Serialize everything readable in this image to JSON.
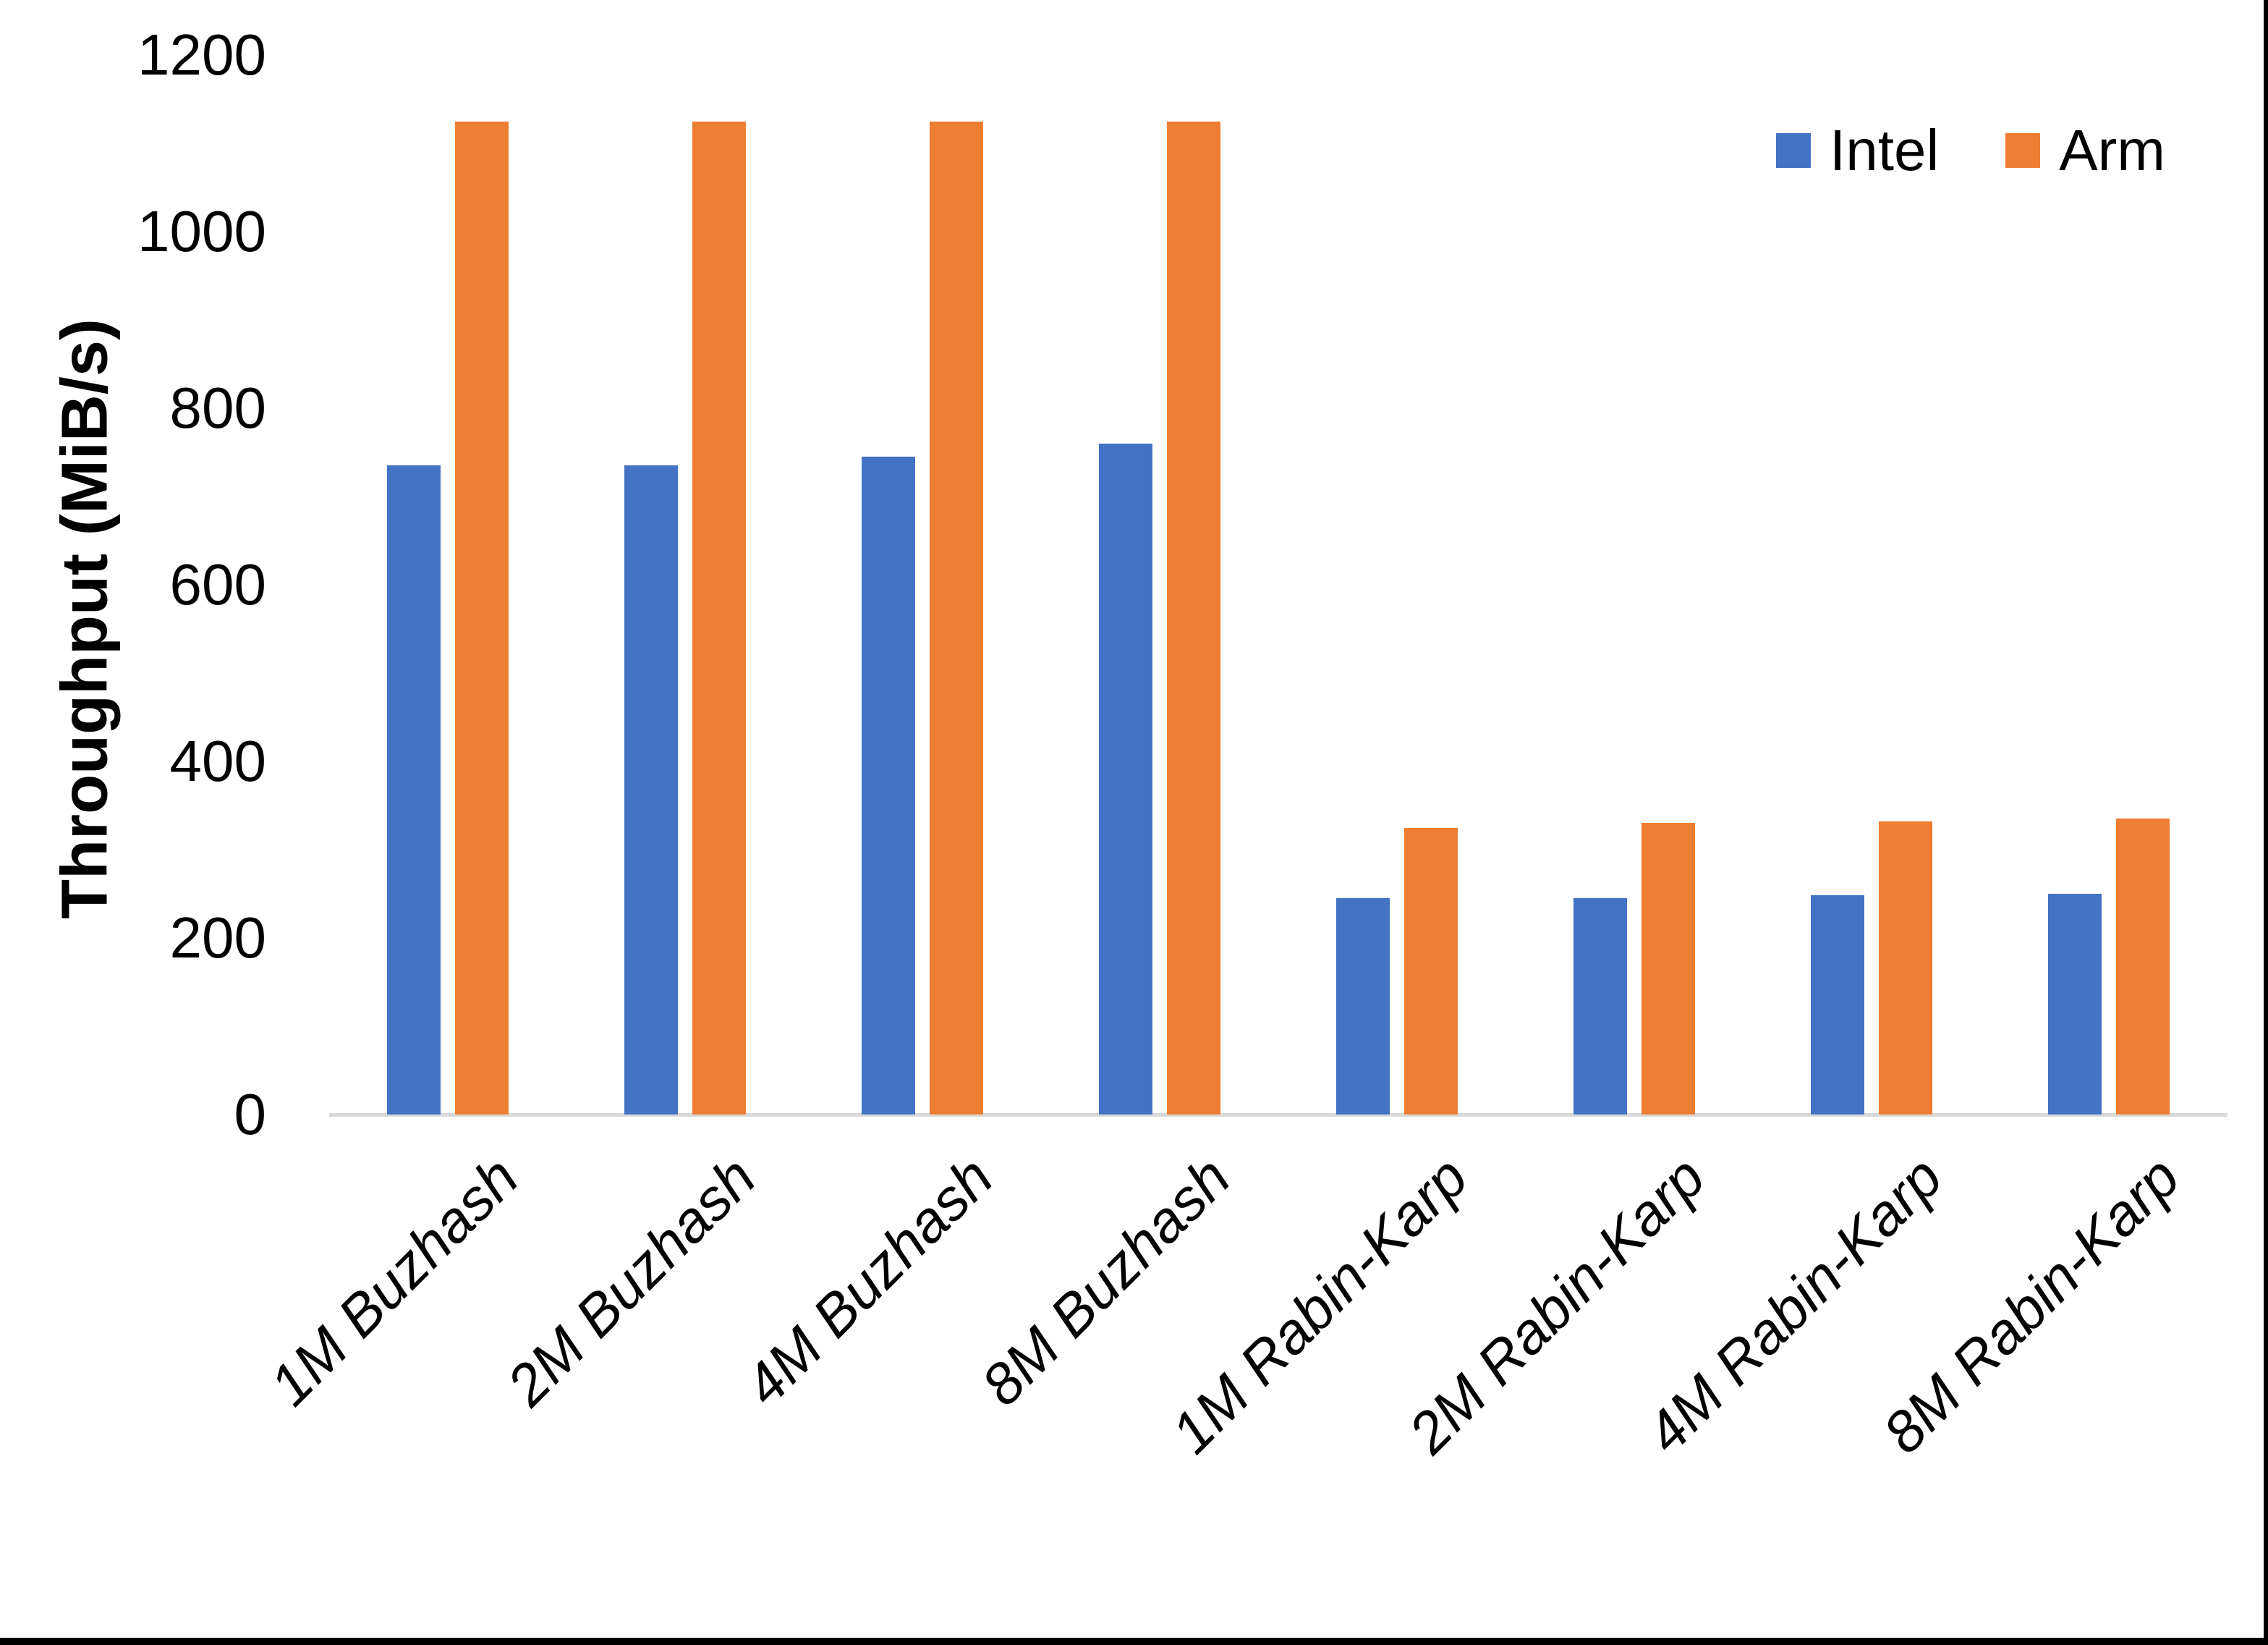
{
  "chart_data": {
    "type": "bar",
    "title": "",
    "xlabel": "",
    "ylabel": "Throughput (MiB/s)",
    "categories": [
      "1M Buzhash",
      "2M Buzhash",
      "4M Buzhash",
      "8M Buzhash",
      "1M Rabin-Karp",
      "2M Rabin-Karp",
      "4M Rabin-Karp",
      "8M Rabin-Karp"
    ],
    "series": [
      {
        "name": "Intel",
        "color": "#4472C4",
        "values": [
          735,
          735,
          745,
          760,
          245,
          245,
          248,
          250
        ]
      },
      {
        "name": "Arm",
        "color": "#ED7D31",
        "values": [
          1125,
          1125,
          1125,
          1125,
          325,
          330,
          332,
          335
        ]
      }
    ],
    "ylim": [
      0,
      1200
    ],
    "yticks": [
      0,
      200,
      400,
      600,
      800,
      1000,
      1200
    ],
    "grid": false,
    "legend_position": "top-right",
    "axis_line_color": "#D9D9D9",
    "tick_label_color": "#000000"
  }
}
